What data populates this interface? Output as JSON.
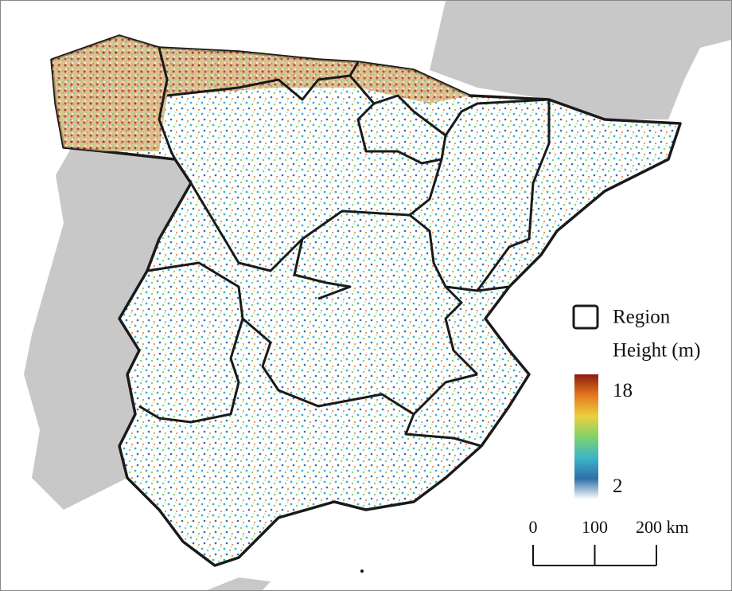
{
  "legend": {
    "region_label": "Region",
    "colorbar": {
      "title": "Height (m)",
      "lim": [
        0,
        21
      ],
      "ticks": [
        2,
        18
      ],
      "colors": [
        "#ffffff",
        "#2f6fa8",
        "#3db5c9",
        "#7fd36b",
        "#eccf3e",
        "#e5781f",
        "#8c1b10"
      ]
    }
  },
  "scale_bar": {
    "ticks": [
      0,
      100,
      {
        "value": 200,
        "label": "200 km"
      }
    ]
  }
}
